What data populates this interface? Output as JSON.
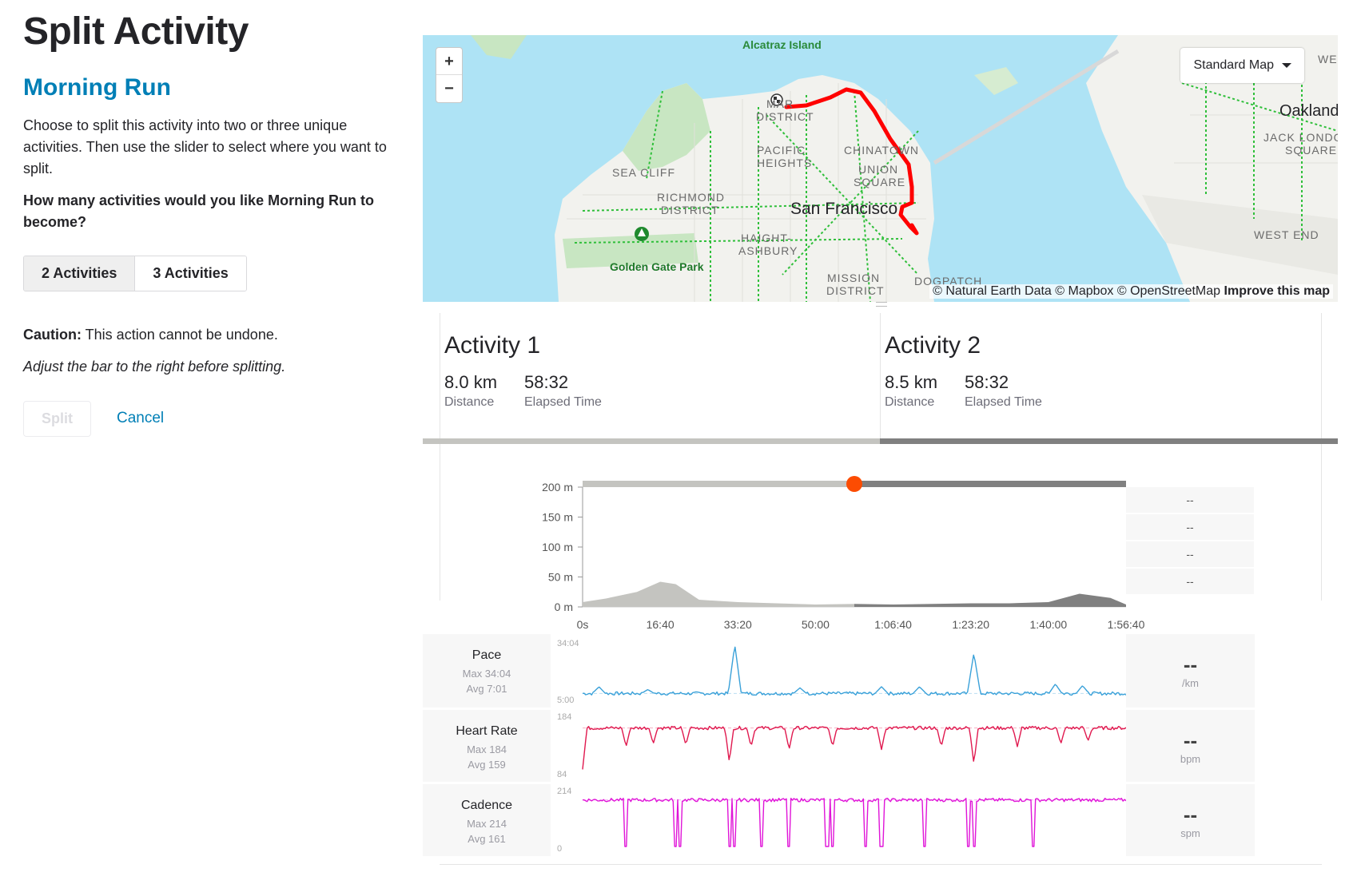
{
  "page": {
    "title": "Split Activity",
    "activity_name": "Morning Run",
    "description": "Choose to split this activity into two or three unique activities. Then use the slider to select where you want to split.",
    "question": "How many activities would you like Morning Run to become?",
    "options": [
      "2 Activities",
      "3 Activities"
    ],
    "selected_option": "2 Activities",
    "caution_label": "Caution:",
    "caution_text": "This action cannot be undone.",
    "adjust_hint": "Adjust the bar to the right before splitting.",
    "split_label": "Split",
    "cancel_label": "Cancel"
  },
  "map": {
    "zoom_in": "+",
    "zoom_out": "−",
    "style_label": "Standard Map",
    "attribution_prefix": "© Natural Earth Data © Mapbox © OpenStreetMap",
    "attribution_link": "Improve this map",
    "labels": {
      "alcatraz": "Alcatraz Island",
      "marina_a": "MAR",
      "marina_b": "DISTRICT",
      "pacific_a": "PACIFIC",
      "pacific_b": "HEIGHTS",
      "chinatown": "CHINATOWN",
      "union_a": "UNION",
      "union_b": "SQUARE",
      "seacliff": "SEA CLIFF",
      "richmond_a": "RICHMOND",
      "richmond_b": "DISTRICT",
      "sf": "San Francisco",
      "haight_a": "HAIGHT-",
      "haight_b": "ASHBURY",
      "ggp": "Golden Gate Park",
      "mission_a": "MISSION",
      "mission_b": "DISTRICT",
      "dogpatch": "DOGPATCH",
      "oakland": "Oakland",
      "jacklondon_a": "JACK LONDON",
      "jacklondon_b": "SQUARE",
      "westend": "WEST END",
      "we": "WE"
    },
    "colors": {
      "water": "#aee3f5",
      "land": "#f2f2ee",
      "park": "#c8e6c2",
      "route": "#ff0000",
      "paths": "#2fbf3a"
    }
  },
  "activities": [
    {
      "title": "Activity 1",
      "distance": "8.0 km",
      "distance_label": "Distance",
      "time": "58:32",
      "time_label": "Elapsed Time"
    },
    {
      "title": "Activity 2",
      "distance": "8.5 km",
      "distance_label": "Distance",
      "time": "58:32",
      "time_label": "Elapsed Time"
    }
  ],
  "slider": {
    "position_fraction": 0.5
  },
  "chart_data": [
    {
      "type": "area",
      "name": "elevation",
      "y_ticks": [
        "200 m",
        "150 m",
        "100 m",
        "50 m",
        "0 m"
      ],
      "x_ticks": [
        "0s",
        "16:40",
        "33:20",
        "50:00",
        "1:06:40",
        "1:23:20",
        "1:40:00",
        "1:56:40"
      ],
      "x_seconds": [
        0,
        300,
        700,
        1000,
        1200,
        1500,
        2000,
        2500,
        3000,
        3500,
        4000,
        4500,
        5000,
        5500,
        6000,
        6400,
        6800,
        7023
      ],
      "elevation_m": [
        8,
        14,
        25,
        42,
        38,
        12,
        8,
        6,
        4,
        5,
        4,
        5,
        6,
        6,
        8,
        22,
        15,
        4
      ],
      "ylim": [
        0,
        200
      ],
      "colors": {
        "activity1": "#c4c4c0",
        "activity2": "#808080"
      },
      "side_values": [
        "--",
        "--",
        "--",
        "--"
      ]
    },
    {
      "type": "line",
      "name": "Pace",
      "max_label": "Max 34:04",
      "avg_label": "Avg 7:01",
      "y_top": "34:04",
      "y_bottom": "5:00",
      "value": "--",
      "unit": "/km",
      "color": "#3aa1d9",
      "baseline_fraction": 0.08,
      "spikes": [
        [
          0.28,
          0.95
        ],
        [
          0.72,
          0.8
        ],
        [
          0.03,
          0.2
        ],
        [
          0.12,
          0.15
        ],
        [
          0.4,
          0.18
        ],
        [
          0.55,
          0.2
        ],
        [
          0.62,
          0.2
        ],
        [
          0.87,
          0.25
        ],
        [
          0.92,
          0.22
        ]
      ]
    },
    {
      "type": "line",
      "name": "Heart Rate",
      "max_label": "Max 184",
      "avg_label": "Avg 159",
      "y_top": "184",
      "y_bottom": "84",
      "value": "--",
      "unit": "bpm",
      "color": "#e0194f",
      "baseline_fraction": 0.78,
      "dips": [
        [
          0.0,
          0.05
        ],
        [
          0.08,
          0.45
        ],
        [
          0.13,
          0.5
        ],
        [
          0.19,
          0.48
        ],
        [
          0.27,
          0.18
        ],
        [
          0.31,
          0.45
        ],
        [
          0.38,
          0.4
        ],
        [
          0.46,
          0.45
        ],
        [
          0.55,
          0.4
        ],
        [
          0.66,
          0.45
        ],
        [
          0.72,
          0.15
        ],
        [
          0.8,
          0.45
        ],
        [
          0.88,
          0.5
        ],
        [
          0.93,
          0.55
        ]
      ]
    },
    {
      "type": "line",
      "name": "Cadence",
      "max_label": "Max 214",
      "avg_label": "Avg 161",
      "y_top": "214",
      "y_bottom": "0",
      "value": "--",
      "unit": "spm",
      "color": "#e014d8",
      "baseline_fraction": 0.82,
      "drops": [
        0.08,
        0.17,
        0.18,
        0.27,
        0.28,
        0.33,
        0.38,
        0.45,
        0.46,
        0.52,
        0.55,
        0.63,
        0.71,
        0.72,
        0.83
      ]
    }
  ]
}
